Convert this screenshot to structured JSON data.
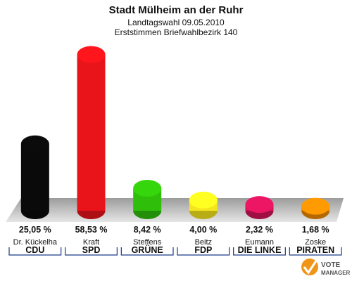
{
  "chart_data": {
    "type": "bar",
    "title": "Stadt Mülheim an der Ruhr",
    "subtitle_1": "Landtagswahl 09.05.2010",
    "subtitle_2": "Erststimmen Briefwahlbezirk 140",
    "ylim": [
      0,
      60
    ],
    "grid": false,
    "series": [
      {
        "values": [
          25.05,
          58.53,
          8.42,
          4.0,
          2.32,
          1.68
        ],
        "value_labels": [
          "25,05 %",
          "58,53 %",
          "8,42 %",
          "4,00 %",
          "2,32 %",
          "1,68 %"
        ]
      }
    ],
    "candidates": [
      "Dr. Kückelha",
      "Kraft",
      "Steffens",
      "Beitz",
      "Eumann",
      "Zoske"
    ],
    "categories": [
      "CDU",
      "SPD",
      "GRÜNE",
      "FDP",
      "DIE LINKE",
      "PIRATEN"
    ],
    "colors": [
      "#0a0a0a",
      "#e8141a",
      "#2fbf0a",
      "#f5e51e",
      "#d4145a",
      "#f08a00"
    ]
  },
  "logo": {
    "line1": "VOTE",
    "line2": "MANAGER"
  }
}
